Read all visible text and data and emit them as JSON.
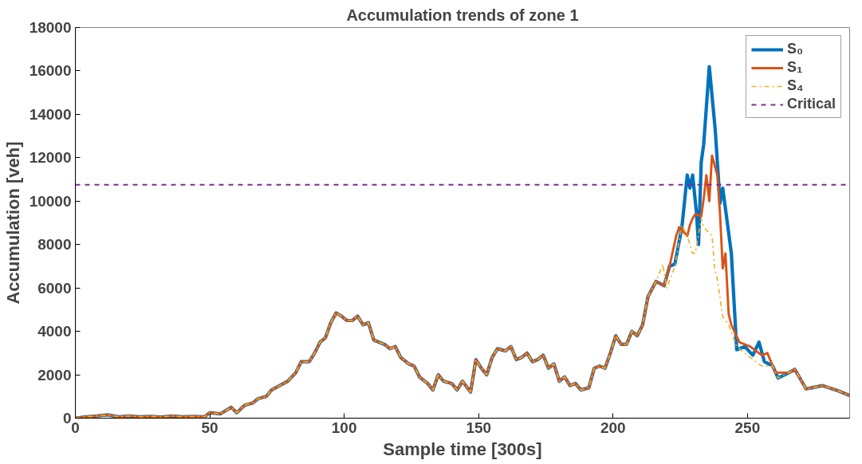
{
  "chart_data": {
    "type": "line",
    "title": "Accumulation trends of zone 1",
    "xlabel": "Sample time [300s]",
    "ylabel": "Accumulation [veh]",
    "xlim": [
      0,
      288
    ],
    "ylim": [
      0,
      18000
    ],
    "xticks": [
      0,
      50,
      100,
      150,
      200,
      250
    ],
    "yticks": [
      0,
      2000,
      4000,
      6000,
      8000,
      10000,
      12000,
      14000,
      16000,
      18000
    ],
    "grid": false,
    "legend": "top right",
    "marker": "none",
    "series": [
      {
        "name": "S₀",
        "color": "#0072bd",
        "line_style": "solid",
        "x": [
          0,
          4,
          8,
          12,
          16,
          20,
          24,
          28,
          32,
          36,
          40,
          44,
          48,
          50,
          54,
          58,
          60,
          63,
          66,
          68,
          71,
          73,
          76,
          79,
          82,
          84,
          87,
          89,
          91,
          93,
          95,
          97,
          99,
          101,
          103,
          105,
          107,
          109,
          111,
          113,
          115,
          117,
          119,
          121,
          124,
          126,
          128,
          131,
          133,
          135,
          137,
          140,
          142,
          144,
          147,
          149,
          151,
          153,
          155,
          157,
          160,
          162,
          164,
          166,
          168,
          170,
          172,
          174,
          176,
          178,
          180,
          182,
          184,
          186,
          188,
          191,
          193,
          195,
          197,
          199,
          201,
          203,
          205,
          207,
          209,
          211,
          213,
          216,
          219,
          221,
          223,
          225.6,
          227.6,
          228.6,
          229.6,
          231,
          231.8,
          232.8,
          233.7,
          235.8,
          238,
          239.8,
          240.8,
          244,
          246,
          249,
          252,
          254.3,
          256.3,
          259.4,
          261.4,
          265.5,
          267.6,
          271.8,
          278,
          284,
          288
        ],
        "values": [
          0,
          60,
          100,
          150,
          60,
          100,
          60,
          80,
          50,
          100,
          60,
          80,
          60,
          250,
          200,
          500,
          250,
          600,
          700,
          900,
          1000,
          1300,
          1500,
          1700,
          2100,
          2600,
          2600,
          3000,
          3500,
          3700,
          4400,
          4850,
          4700,
          4500,
          4500,
          4700,
          4300,
          4400,
          3600,
          3500,
          3400,
          3200,
          3300,
          2800,
          2500,
          2400,
          1900,
          1600,
          1300,
          2000,
          1700,
          1600,
          1300,
          1700,
          1200,
          2700,
          2300,
          2000,
          2800,
          3200,
          3100,
          3300,
          2700,
          2800,
          3000,
          2600,
          2700,
          2900,
          2300,
          2500,
          1700,
          1900,
          1500,
          1600,
          1300,
          1400,
          2300,
          2400,
          2300,
          3000,
          3800,
          3400,
          3400,
          4000,
          3800,
          4300,
          5600,
          6300,
          6100,
          7000,
          7100,
          8800,
          11200,
          10600,
          11200,
          9500,
          8000,
          11800,
          12600,
          16200,
          13300,
          9900,
          10600,
          7600,
          3150,
          3300,
          2900,
          3500,
          2600,
          2400,
          1850,
          2100,
          2250,
          1350,
          1500,
          1250,
          1040
        ]
      },
      {
        "name": "S₁",
        "color": "#d95319",
        "line_style": "solid",
        "x": [
          0,
          4,
          8,
          12,
          16,
          20,
          24,
          28,
          32,
          36,
          40,
          44,
          48,
          50,
          54,
          58,
          60,
          63,
          66,
          68,
          71,
          73,
          76,
          79,
          82,
          84,
          87,
          89,
          91,
          93,
          95,
          97,
          99,
          101,
          103,
          105,
          107,
          109,
          111,
          113,
          115,
          117,
          119,
          121,
          124,
          126,
          128,
          131,
          133,
          135,
          137,
          140,
          142,
          144,
          147,
          149,
          151,
          153,
          155,
          157,
          160,
          162,
          164,
          166,
          168,
          170,
          172,
          174,
          176,
          178,
          180,
          182,
          184,
          186,
          188,
          191,
          193,
          195,
          197,
          199,
          201,
          203,
          205,
          207,
          209,
          211,
          213,
          216,
          219,
          221,
          223.5,
          224.6,
          227.6,
          228.6,
          229.6,
          230.6,
          232.8,
          233.7,
          234.7,
          235.8,
          236.8,
          238.8,
          239.8,
          240.8,
          241.8,
          243,
          244,
          247,
          251,
          255.3,
          257.4,
          260.4,
          265.5,
          267.6,
          271.8,
          278,
          284,
          288
        ],
        "values": [
          0,
          60,
          100,
          150,
          60,
          100,
          60,
          80,
          50,
          100,
          60,
          80,
          60,
          250,
          200,
          500,
          250,
          600,
          700,
          900,
          1000,
          1300,
          1500,
          1700,
          2100,
          2600,
          2600,
          3000,
          3500,
          3700,
          4400,
          4850,
          4700,
          4500,
          4500,
          4700,
          4300,
          4400,
          3600,
          3500,
          3400,
          3200,
          3300,
          2800,
          2500,
          2400,
          1900,
          1600,
          1300,
          2000,
          1700,
          1600,
          1300,
          1700,
          1200,
          2700,
          2300,
          2000,
          2800,
          3200,
          3100,
          3300,
          2700,
          2800,
          3000,
          2600,
          2700,
          2900,
          2300,
          2500,
          1700,
          1900,
          1500,
          1600,
          1300,
          1400,
          2300,
          2400,
          2300,
          3000,
          3800,
          3400,
          3400,
          4000,
          3800,
          4300,
          5600,
          6300,
          6100,
          7000,
          8400,
          8800,
          8400,
          8900,
          9200,
          9400,
          9300,
          10100,
          11200,
          10000,
          12100,
          11200,
          9400,
          6900,
          7600,
          4800,
          4300,
          3500,
          3300,
          2900,
          3000,
          2100,
          2100,
          2250,
          1350,
          1500,
          1250,
          1040
        ]
      },
      {
        "name": "S₄",
        "color": "#edb120",
        "line_style": "dashdot",
        "x": [
          0,
          4,
          8,
          12,
          16,
          20,
          24,
          28,
          32,
          36,
          40,
          44,
          48,
          50,
          54,
          58,
          60,
          63,
          66,
          68,
          71,
          73,
          76,
          79,
          82,
          84,
          87,
          89,
          91,
          93,
          95,
          97,
          99,
          101,
          103,
          105,
          107,
          109,
          111,
          113,
          115,
          117,
          119,
          121,
          124,
          126,
          128,
          131,
          133,
          135,
          137,
          140,
          142,
          144,
          147,
          149,
          151,
          153,
          155,
          157,
          160,
          162,
          164,
          166,
          168,
          170,
          172,
          174,
          176,
          178,
          180,
          182,
          184,
          186,
          188,
          191,
          193,
          195,
          197,
          199,
          201,
          203,
          205,
          207,
          209,
          211,
          213,
          216,
          218.5,
          220,
          223,
          225.6,
          227.6,
          229.6,
          230.6,
          232.8,
          233.7,
          236.8,
          237.8,
          238.8,
          240.8,
          243,
          246,
          251,
          255.3,
          259.4,
          261.4,
          265.5,
          267.6,
          271.8,
          278,
          284,
          288
        ],
        "values": [
          0,
          60,
          100,
          150,
          60,
          100,
          60,
          80,
          50,
          100,
          60,
          80,
          60,
          250,
          200,
          500,
          250,
          600,
          700,
          900,
          1000,
          1300,
          1500,
          1700,
          2100,
          2600,
          2600,
          3000,
          3500,
          3700,
          4400,
          4850,
          4700,
          4500,
          4500,
          4700,
          4300,
          4400,
          3600,
          3500,
          3400,
          3200,
          3300,
          2800,
          2500,
          2400,
          1900,
          1600,
          1300,
          2000,
          1700,
          1600,
          1300,
          1700,
          1200,
          2700,
          2300,
          2000,
          2800,
          3200,
          3100,
          3300,
          2700,
          2800,
          3000,
          2600,
          2700,
          2900,
          2300,
          2500,
          1700,
          1900,
          1500,
          1600,
          1300,
          1400,
          2300,
          2400,
          2300,
          3000,
          3800,
          3400,
          3400,
          4000,
          3800,
          4300,
          5600,
          6300,
          7100,
          6000,
          7000,
          8900,
          8400,
          7600,
          7600,
          9200,
          8800,
          8400,
          6900,
          6400,
          4700,
          4300,
          3300,
          2800,
          2400,
          2400,
          1850,
          2100,
          2250,
          1350,
          1500,
          1250,
          1040
        ]
      }
    ],
    "ref_lines": [
      {
        "axis": "y",
        "value": 10750,
        "label": "Critical",
        "color": "#7e2f8e",
        "line_style": "dashed"
      }
    ]
  }
}
